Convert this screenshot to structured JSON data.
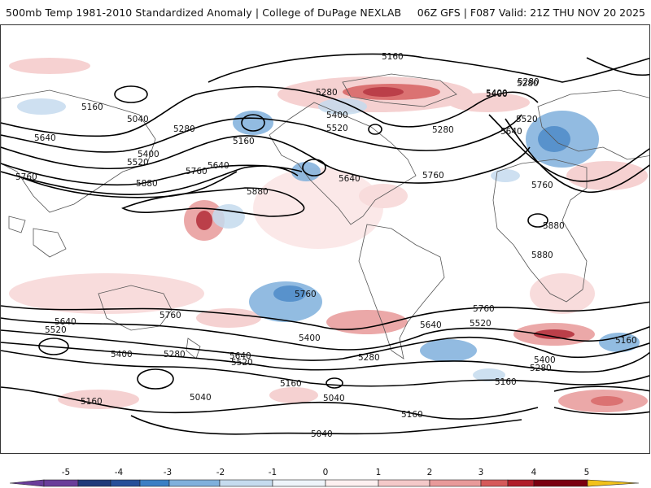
{
  "header": {
    "title": "500mb Temp 1981-2010 Standardized Anomaly | College of DuPage NEXLAB",
    "run_info": "06Z GFS | F087 Valid: 21Z THU NOV 20 2025"
  },
  "map": {
    "contour_labels": [
      {
        "id": "c1",
        "text": "5160"
      },
      {
        "id": "c2",
        "text": "5280"
      },
      {
        "id": "c3",
        "text": "5400"
      },
      {
        "id": "c4",
        "text": "5160"
      },
      {
        "id": "c5",
        "text": "5040"
      },
      {
        "id": "c6",
        "text": "5280"
      },
      {
        "id": "c7",
        "text": "5640"
      },
      {
        "id": "c8",
        "text": "5400"
      },
      {
        "id": "c9",
        "text": "5520"
      },
      {
        "id": "c10",
        "text": "5160"
      },
      {
        "id": "c11",
        "text": "5640"
      },
      {
        "id": "c12",
        "text": "5760"
      },
      {
        "id": "c13",
        "text": "5280"
      },
      {
        "id": "c14",
        "text": "5400"
      },
      {
        "id": "c15",
        "text": "5520"
      },
      {
        "id": "c16",
        "text": "5280"
      },
      {
        "id": "c17",
        "text": "5640"
      },
      {
        "id": "c18",
        "text": "5760"
      },
      {
        "id": "c19",
        "text": "5880"
      },
      {
        "id": "c20",
        "text": "5880"
      },
      {
        "id": "c21",
        "text": "5760"
      },
      {
        "id": "c22",
        "text": "5280"
      },
      {
        "id": "c23",
        "text": "5400"
      },
      {
        "id": "c24",
        "text": "5520"
      },
      {
        "id": "c25",
        "text": "5640"
      },
      {
        "id": "c26",
        "text": "5760"
      },
      {
        "id": "c27",
        "text": "5880"
      },
      {
        "id": "c28",
        "text": "5880"
      },
      {
        "id": "c29",
        "text": "5760"
      },
      {
        "id": "c30",
        "text": "5640"
      },
      {
        "id": "c31",
        "text": "5520"
      },
      {
        "id": "c32",
        "text": "5760"
      },
      {
        "id": "c33",
        "text": "5400"
      },
      {
        "id": "c34",
        "text": "5640"
      },
      {
        "id": "c35",
        "text": "5520"
      },
      {
        "id": "c36",
        "text": "5280"
      },
      {
        "id": "c37",
        "text": "5280"
      },
      {
        "id": "c38",
        "text": "5400"
      },
      {
        "id": "c39",
        "text": "5160"
      },
      {
        "id": "c40",
        "text": "5040"
      },
      {
        "id": "c41",
        "text": "5160"
      },
      {
        "id": "c42",
        "text": "5040"
      },
      {
        "id": "c43",
        "text": "5160"
      },
      {
        "id": "c44",
        "text": "5640"
      },
      {
        "id": "c45",
        "text": "5520"
      },
      {
        "id": "c46",
        "text": "5760"
      },
      {
        "id": "c47",
        "text": "5400"
      },
      {
        "id": "c48",
        "text": "5280"
      },
      {
        "id": "c49",
        "text": "5160"
      },
      {
        "id": "c50",
        "text": "5160"
      },
      {
        "id": "c51",
        "text": "5040"
      }
    ]
  },
  "colorbar": {
    "ticks": [
      "-5",
      "-4",
      "-3",
      "-2",
      "-1",
      "0",
      "1",
      "2",
      "3",
      "4",
      "5"
    ],
    "colors": {
      "n5": "#6a3d9a",
      "n4": "#1f3a7a",
      "n3": "#3b7fc4",
      "n2": "#7fb0dc",
      "n1": "#c5dbee",
      "p0": "#ffffff",
      "p1": "#f4c9c9",
      "p2": "#e89a9a",
      "p3": "#d55a5a",
      "p4": "#b01e2a",
      "p5": "#7a0010",
      "end": "#f2c21b"
    }
  }
}
